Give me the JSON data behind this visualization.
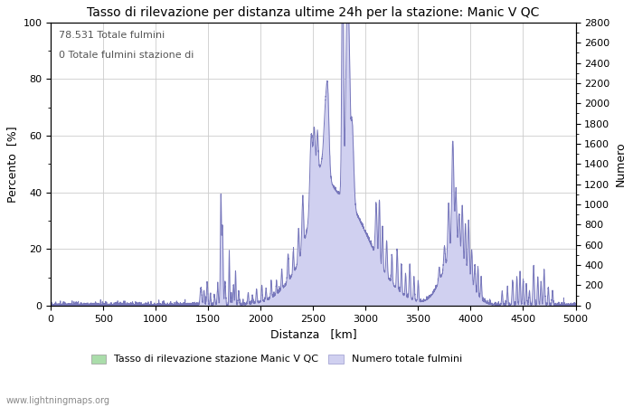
{
  "title": "Tasso di rilevazione per distanza ultime 24h per la stazione: Manic V QC",
  "xlabel": "Distanza   [km]",
  "ylabel_left": "Percento  [%]",
  "ylabel_right": "Numero",
  "xlim": [
    0,
    5000
  ],
  "ylim_left": [
    0,
    100
  ],
  "ylim_right": [
    0,
    2800
  ],
  "xticks": [
    0,
    500,
    1000,
    1500,
    2000,
    2500,
    3000,
    3500,
    4000,
    4500,
    5000
  ],
  "yticks_left": [
    0,
    20,
    40,
    60,
    80,
    100
  ],
  "yticks_right": [
    0,
    200,
    400,
    600,
    800,
    1000,
    1200,
    1400,
    1600,
    1800,
    2000,
    2200,
    2400,
    2600,
    2800
  ],
  "annotation_line1": "78.531 Totale fulmini",
  "annotation_line2": "0 Totale fulmini stazione di",
  "legend_label1": "Tasso di rilevazione stazione Manic V QC",
  "legend_label2": "Numero totale fulmini",
  "color_green": "#aaddaa",
  "color_blue_fill": "#d0d0f0",
  "color_line_blue": "#7777bb",
  "watermark": "www.lightningmaps.org",
  "title_fontsize": 10,
  "axis_fontsize": 9,
  "tick_fontsize": 8,
  "annotation_fontsize": 8
}
